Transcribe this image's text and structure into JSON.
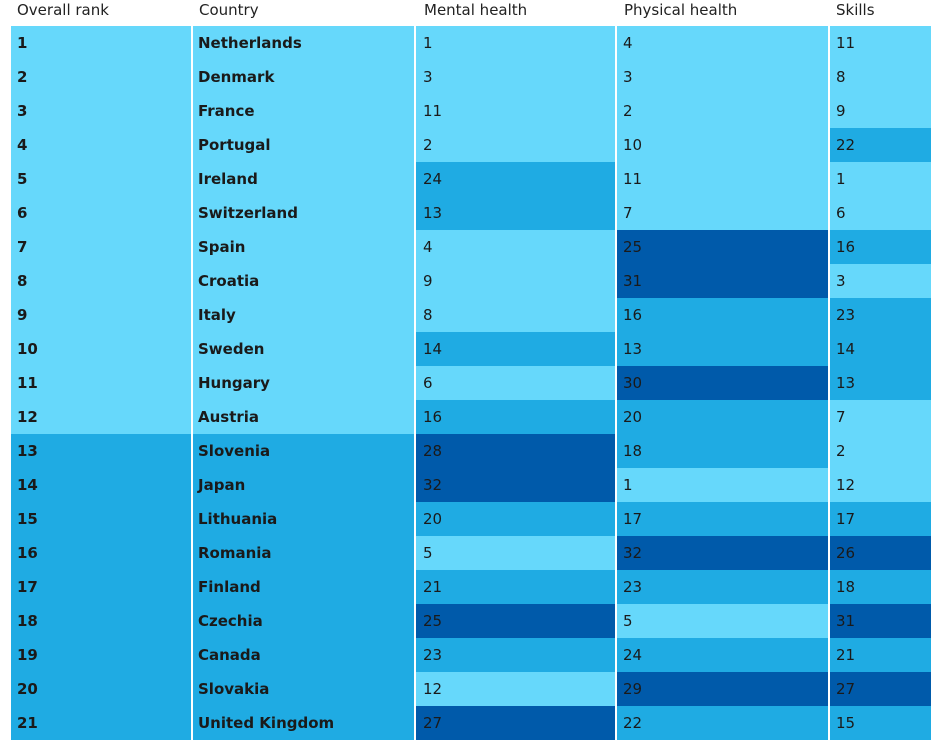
{
  "headers": [
    "Overall rank",
    "Country",
    "Mental health",
    "Physical health",
    "Skills"
  ],
  "colors": {
    "tier1": "#66d8fb",
    "tier2": "#1fabe3",
    "tier3": "#005aaa",
    "divider": "#ffffff"
  },
  "rows": [
    {
      "rank": "1",
      "country": "Netherlands",
      "mental": "1",
      "physical": "4",
      "skills": "11"
    },
    {
      "rank": "2",
      "country": "Denmark",
      "mental": "3",
      "physical": "3",
      "skills": "8"
    },
    {
      "rank": "3",
      "country": "France",
      "mental": "11",
      "physical": "2",
      "skills": "9"
    },
    {
      "rank": "4",
      "country": "Portugal",
      "mental": "2",
      "physical": "10",
      "skills": "22"
    },
    {
      "rank": "5",
      "country": "Ireland",
      "mental": "24",
      "physical": "11",
      "skills": "1"
    },
    {
      "rank": "6",
      "country": "Switzerland",
      "mental": "13",
      "physical": "7",
      "skills": "6"
    },
    {
      "rank": "7",
      "country": "Spain",
      "mental": "4",
      "physical": "25",
      "skills": "16"
    },
    {
      "rank": "8",
      "country": "Croatia",
      "mental": "9",
      "physical": "31",
      "skills": "3"
    },
    {
      "rank": "9",
      "country": "Italy",
      "mental": "8",
      "physical": "16",
      "skills": "23"
    },
    {
      "rank": "10",
      "country": "Sweden",
      "mental": "14",
      "physical": "13",
      "skills": "14"
    },
    {
      "rank": "11",
      "country": "Hungary",
      "mental": "6",
      "physical": "30",
      "skills": "13"
    },
    {
      "rank": "12",
      "country": "Austria",
      "mental": "16",
      "physical": "20",
      "skills": "7"
    },
    {
      "rank": "13",
      "country": "Slovenia",
      "mental": "28",
      "physical": "18",
      "skills": "2"
    },
    {
      "rank": "14",
      "country": "Japan",
      "mental": "32",
      "physical": "1",
      "skills": "12"
    },
    {
      "rank": "15",
      "country": "Lithuania",
      "mental": "20",
      "physical": "17",
      "skills": "17"
    },
    {
      "rank": "16",
      "country": "Romania",
      "mental": "5",
      "physical": "32",
      "skills": "26"
    },
    {
      "rank": "17",
      "country": "Finland",
      "mental": "21",
      "physical": "23",
      "skills": "18"
    },
    {
      "rank": "18",
      "country": "Czechia",
      "mental": "25",
      "physical": "5",
      "skills": "31"
    },
    {
      "rank": "19",
      "country": "Canada",
      "mental": "23",
      "physical": "24",
      "skills": "21"
    },
    {
      "rank": "20",
      "country": "Slovakia",
      "mental": "12",
      "physical": "29",
      "skills": "27"
    },
    {
      "rank": "21",
      "country": "United Kingdom",
      "mental": "27",
      "physical": "22",
      "skills": "15"
    }
  ]
}
